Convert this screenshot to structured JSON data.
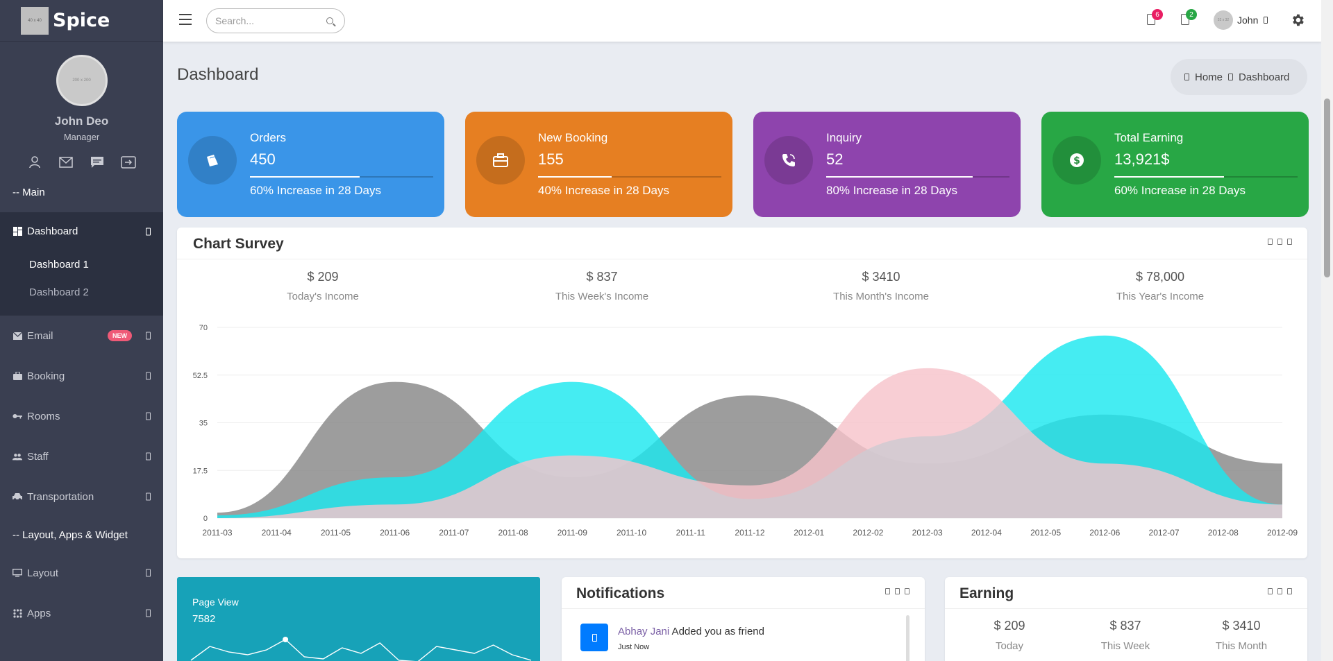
{
  "brand": {
    "name": "Spice",
    "logo_text": "40 x 40"
  },
  "profile": {
    "name": "John Deo",
    "role": "Manager",
    "avatar_text": "200 x 200"
  },
  "sidebar": {
    "header_main": "-- Main",
    "dashboard": "Dashboard",
    "submenu": [
      "Dashboard 1",
      "Dashboard 2"
    ],
    "items": [
      {
        "label": "Email",
        "badge": "NEW"
      },
      {
        "label": "Booking"
      },
      {
        "label": "Rooms"
      },
      {
        "label": "Staff"
      },
      {
        "label": "Transportation"
      }
    ],
    "header_layout": "-- Layout, Apps & Widget",
    "items2": [
      {
        "label": "Layout"
      },
      {
        "label": "Apps"
      }
    ]
  },
  "topbar": {
    "search_placeholder": "Search...",
    "notif_count": "6",
    "task_count": "2",
    "user_name": "John",
    "user_avatar_text": "32 x 32",
    "colors": {
      "notif_badge": "#e91e63",
      "task_badge": "#28a745"
    }
  },
  "page": {
    "title": "Dashboard",
    "breadcrumb": [
      "Home",
      "Dashboard"
    ]
  },
  "stats": [
    {
      "title": "Orders",
      "value": "450",
      "progress": 60,
      "desc": "60% Increase in 28 Days",
      "color": "#3a95e8"
    },
    {
      "title": "New Booking",
      "value": "155",
      "progress": 40,
      "desc": "40% Increase in 28 Days",
      "color": "#e67f22"
    },
    {
      "title": "Inquiry",
      "value": "52",
      "progress": 80,
      "desc": "80% Increase in 28 Days",
      "color": "#8e44ad"
    },
    {
      "title": "Total Earning",
      "value": "13,921$",
      "progress": 60,
      "desc": "60% Increase in 28 Days",
      "color": "#28a745"
    }
  ],
  "survey": {
    "title": "Chart Survey",
    "incomes": [
      {
        "value": "$ 209",
        "label": "Today's Income"
      },
      {
        "value": "$ 837",
        "label": "This Week's Income"
      },
      {
        "value": "$ 3410",
        "label": "This Month's Income"
      },
      {
        "value": "$ 78,000",
        "label": "This Year's Income"
      }
    ]
  },
  "chart_data": {
    "type": "area",
    "x": [
      "2011-03",
      "2011-04",
      "2011-05",
      "2011-06",
      "2011-07",
      "2011-08",
      "2011-09",
      "2011-10",
      "2011-11",
      "2011-12",
      "2012-01",
      "2012-02",
      "2012-03",
      "2012-04",
      "2012-05",
      "2012-06",
      "2012-07",
      "2012-08",
      "2012-09"
    ],
    "ylim": [
      0,
      70
    ],
    "yticks": [
      "0",
      "17.5",
      "35",
      "52.5",
      "70"
    ],
    "grid": true,
    "series": [
      {
        "color": "#888888",
        "points": [
          [
            "2011-03",
            2
          ],
          [
            "2011-06",
            50
          ],
          [
            "2011-09",
            15
          ],
          [
            "2011-12",
            45
          ],
          [
            "2012-03",
            20
          ],
          [
            "2012-06",
            38
          ],
          [
            "2012-09",
            20
          ]
        ]
      },
      {
        "color": "#1ce8ef",
        "points": [
          [
            "2011-03",
            1
          ],
          [
            "2011-06",
            15
          ],
          [
            "2011-09",
            50
          ],
          [
            "2011-12",
            7
          ],
          [
            "2012-03",
            30
          ],
          [
            "2012-06",
            67
          ],
          [
            "2012-09",
            5
          ]
        ]
      },
      {
        "color": "#f7c3cb",
        "points": [
          [
            "2011-03",
            0
          ],
          [
            "2011-06",
            5
          ],
          [
            "2011-09",
            23
          ],
          [
            "2011-12",
            12
          ],
          [
            "2012-03",
            55
          ],
          [
            "2012-06",
            20
          ],
          [
            "2012-09",
            5
          ]
        ]
      }
    ]
  },
  "pageview": {
    "title": "Page View",
    "value": "7582",
    "spark": [
      10,
      30,
      22,
      18,
      25,
      40,
      15,
      12,
      28,
      20,
      35,
      10,
      8,
      30,
      25,
      20,
      32,
      18,
      10
    ]
  },
  "notifications": {
    "title": "Notifications",
    "items": [
      {
        "name": "Abhay Jani",
        "text": " Added you as friend",
        "time": "Just Now"
      }
    ]
  },
  "earning": {
    "title": "Earning",
    "cols": [
      {
        "value": "$ 209",
        "label": "Today"
      },
      {
        "value": "$ 837",
        "label": "This Week"
      },
      {
        "value": "$ 3410",
        "label": "This Month"
      }
    ]
  }
}
